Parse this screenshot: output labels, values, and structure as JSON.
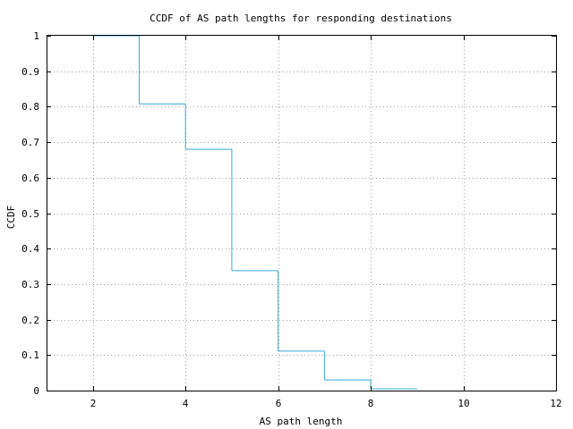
{
  "chart_data": {
    "type": "line",
    "step": true,
    "title": "CCDF of AS path lengths for responding destinations",
    "xlabel": "AS path length",
    "ylabel": "CCDF",
    "xlim": [
      1,
      12
    ],
    "ylim": [
      0,
      1
    ],
    "xticks": [
      2,
      4,
      6,
      8,
      10,
      12
    ],
    "yticks": [
      0,
      0.1,
      0.2,
      0.3,
      0.4,
      0.5,
      0.6,
      0.7,
      0.8,
      0.9,
      1
    ],
    "ytick_labels": [
      "0",
      "0.1",
      "0.2",
      "0.3",
      "0.4",
      "0.5",
      "0.6",
      "0.7",
      "0.8",
      "0.9",
      "1"
    ],
    "grid": true,
    "series": [
      {
        "color": "#3aa8d6",
        "x": [
          2,
          3,
          4,
          5,
          6,
          7,
          8,
          9
        ],
        "y": [
          1.0,
          0.808,
          0.68,
          0.338,
          0.111,
          0.03,
          0.005,
          0.0
        ]
      }
    ]
  }
}
